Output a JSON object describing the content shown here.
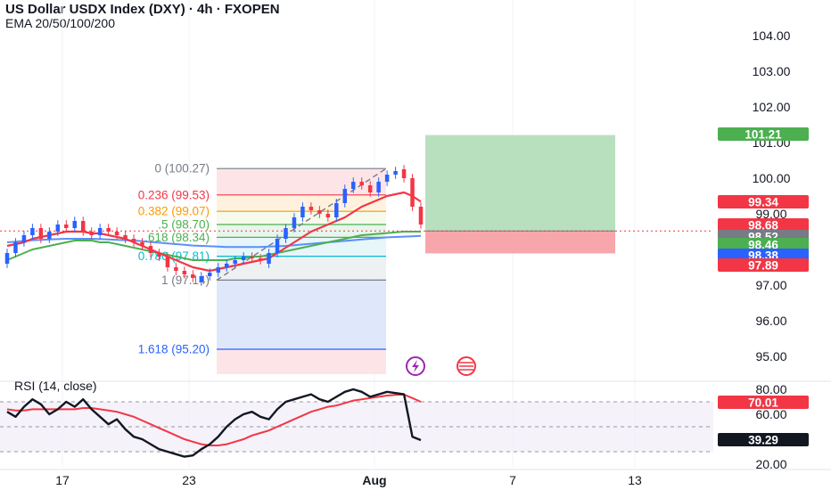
{
  "header": {
    "title": "US Dollar USDX Index (DXY) · 4h · FXOPEN",
    "indicators": "EMA 20/50/100/200"
  },
  "rsi_label": "RSI (14, close)",
  "colors": {
    "up": "#2962ff",
    "down": "#f23645",
    "ema20": "#f23645",
    "ema_green": "#4caf50",
    "ema_blue": "#5b8ff9",
    "rsi_line": "#131722",
    "fib_red": "#f23645",
    "fib_orange": "#ff9800",
    "fib_green": "#4caf50",
    "fib_teal": "#00bcd4",
    "fib_blue": "#2962ff",
    "fib_grey": "#787b86"
  },
  "chart_data": [
    {
      "type": "candlestick",
      "title": "US Dollar USDX Index (DXY) · 4h · FXOPEN",
      "y_ticks": [
        "104.00",
        "103.00",
        "102.00",
        "101.00",
        "100.00",
        "99.00",
        "97.00",
        "96.00",
        "95.00"
      ],
      "x_ticks": [
        "17",
        "23",
        "Aug",
        "7",
        "13"
      ],
      "ylim": [
        94.5,
        104.5
      ],
      "price_labels": [
        {
          "text": "101.21",
          "value": 101.21,
          "color": "#4caf50"
        },
        {
          "text": "99.34",
          "value": 99.34,
          "color": "#f23645"
        },
        {
          "text": "98.68",
          "value": 98.68,
          "color": "#f23645"
        },
        {
          "text": "98.52",
          "value": 98.52,
          "color": "#787b86"
        },
        {
          "text": "98.46",
          "value": 98.46,
          "color": "#4caf50"
        },
        {
          "text": "98.38",
          "value": 98.38,
          "color": "#2962ff"
        },
        {
          "text": "97.89",
          "value": 97.89,
          "color": "#f23645"
        }
      ],
      "fib_levels": [
        {
          "text": "0 (100.27)",
          "value": 100.27,
          "color": "#787b86"
        },
        {
          "text": "0.236 (99.53)",
          "value": 99.53,
          "color": "#f23645"
        },
        {
          "text": "0.382 (99.07)",
          "value": 99.07,
          "color": "#ff9800"
        },
        {
          "text": ".5 (98.70)",
          "value": 98.7,
          "color": "#4caf50"
        },
        {
          "text": ".618 (98.34)",
          "value": 98.34,
          "color": "#4caf50"
        },
        {
          "text": "0.786 (97.81)",
          "value": 97.81,
          "color": "#00bcd4"
        },
        {
          "text": "1 (97.14)",
          "value": 97.14,
          "color": "#787b86"
        },
        {
          "text": "1.618 (95.20)",
          "value": 95.2,
          "color": "#2962ff"
        }
      ],
      "closes": [
        97.9,
        98.2,
        98.4,
        98.6,
        98.3,
        98.5,
        98.7,
        98.6,
        98.8,
        98.5,
        98.4,
        98.6,
        98.5,
        98.4,
        98.3,
        98.2,
        98.1,
        97.9,
        97.8,
        97.5,
        97.4,
        97.3,
        97.2,
        97.25,
        97.35,
        97.5,
        97.6,
        97.7,
        97.8,
        97.75,
        97.7,
        97.9,
        98.3,
        98.6,
        98.9,
        99.2,
        99.1,
        99.0,
        98.9,
        99.3,
        99.7,
        99.9,
        99.8,
        99.6,
        99.9,
        100.1,
        100.2,
        100.0,
        99.2,
        98.7
      ],
      "opens": [
        97.6,
        97.9,
        98.2,
        98.4,
        98.6,
        98.3,
        98.5,
        98.7,
        98.6,
        98.8,
        98.5,
        98.4,
        98.6,
        98.5,
        98.4,
        98.3,
        98.2,
        98.1,
        97.9,
        97.8,
        97.5,
        97.4,
        97.3,
        97.1,
        97.25,
        97.35,
        97.5,
        97.6,
        97.7,
        97.8,
        97.75,
        97.6,
        97.9,
        98.3,
        98.6,
        98.9,
        99.2,
        99.1,
        99.0,
        98.9,
        99.3,
        99.7,
        99.9,
        99.8,
        99.6,
        99.9,
        100.1,
        100.25,
        100.0,
        99.2
      ],
      "ema20": [
        98.1,
        98.15,
        98.2,
        98.3,
        98.35,
        98.4,
        98.45,
        98.5,
        98.5,
        98.5,
        98.45,
        98.45,
        98.4,
        98.35,
        98.3,
        98.2,
        98.1,
        98.0,
        97.9,
        97.8,
        97.7,
        97.6,
        97.5,
        97.45,
        97.4,
        97.45,
        97.5,
        97.55,
        97.6,
        97.65,
        97.7,
        97.75,
        97.9,
        98.05,
        98.2,
        98.35,
        98.5,
        98.6,
        98.7,
        98.8,
        98.9,
        99.05,
        99.2,
        99.3,
        99.4,
        99.5,
        99.55,
        99.6,
        99.5,
        99.34
      ],
      "ema_green": [
        97.7,
        97.8,
        97.9,
        98.0,
        98.05,
        98.1,
        98.15,
        98.2,
        98.25,
        98.25,
        98.25,
        98.2,
        98.2,
        98.15,
        98.1,
        98.05,
        98.0,
        97.95,
        97.9,
        97.85,
        97.8,
        97.75,
        97.7,
        97.7,
        97.7,
        97.7,
        97.7,
        97.75,
        97.75,
        97.8,
        97.8,
        97.85,
        97.9,
        97.95,
        98.0,
        98.05,
        98.1,
        98.15,
        98.2,
        98.25,
        98.3,
        98.35,
        98.4,
        98.42,
        98.44,
        98.46,
        98.48,
        98.5,
        98.5,
        98.5
      ],
      "ema_blue": [
        98.2,
        98.22,
        98.24,
        98.26,
        98.27,
        98.28,
        98.29,
        98.3,
        98.3,
        98.3,
        98.3,
        98.29,
        98.28,
        98.27,
        98.26,
        98.25,
        98.23,
        98.21,
        98.19,
        98.17,
        98.15,
        98.13,
        98.11,
        98.1,
        98.09,
        98.08,
        98.07,
        98.07,
        98.07,
        98.07,
        98.07,
        98.08,
        98.09,
        98.1,
        98.12,
        98.14,
        98.16,
        98.18,
        98.2,
        98.22,
        98.24,
        98.26,
        98.28,
        98.3,
        98.32,
        98.34,
        98.35,
        98.36,
        98.37,
        98.38
      ],
      "trade_box": {
        "target": 101.21,
        "entry": 98.52,
        "stop": 97.89
      }
    },
    {
      "type": "line",
      "title": "RSI (14, close)",
      "y_ticks": [
        "80.00",
        "60.00",
        "20.00"
      ],
      "ylim": [
        18,
        85
      ],
      "band": [
        30,
        70
      ],
      "price_labels": [
        {
          "text": "70.01",
          "value": 70.01,
          "color": "#f23645"
        },
        {
          "text": "39.29",
          "value": 39.29,
          "color": "#131722"
        }
      ],
      "rsi": [
        62,
        58,
        66,
        72,
        68,
        60,
        64,
        70,
        66,
        72,
        64,
        58,
        52,
        56,
        48,
        42,
        40,
        36,
        32,
        30,
        28,
        26,
        27,
        32,
        36,
        42,
        50,
        56,
        60,
        62,
        58,
        56,
        64,
        70,
        72,
        74,
        76,
        72,
        70,
        74,
        78,
        80,
        78,
        74,
        76,
        78,
        77,
        76,
        42,
        39.29
      ],
      "rsi_ma": [
        64,
        63,
        63,
        64,
        64,
        64,
        64,
        64,
        64,
        65,
        65,
        64,
        63,
        62,
        60,
        58,
        55,
        52,
        49,
        46,
        43,
        40,
        38,
        36,
        35,
        35,
        36,
        38,
        40,
        43,
        45,
        47,
        50,
        53,
        56,
        59,
        62,
        64,
        66,
        67,
        69,
        71,
        72,
        73,
        74,
        75,
        75.5,
        75.8,
        73,
        70.01
      ]
    }
  ]
}
